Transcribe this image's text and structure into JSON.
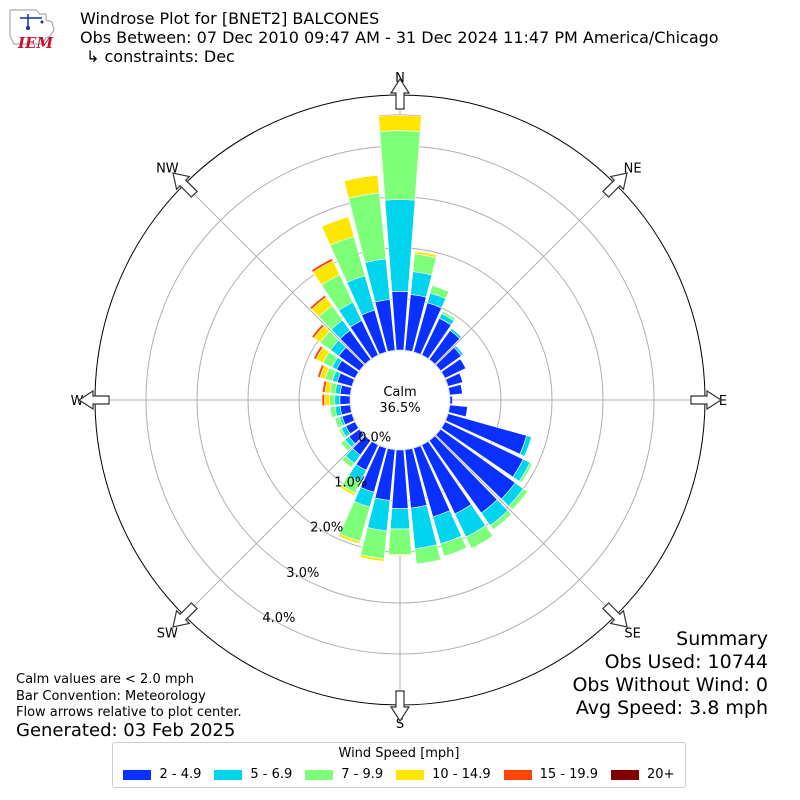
{
  "header": {
    "title": "Windrose Plot for [BNET2] BALCONES",
    "subtitle": "Obs Between: 07 Dec 2010 09:47 AM - 31 Dec 2024 11:47 PM America/Chicago",
    "constraints": "↳ constraints: Dec",
    "logo_text": "IEM"
  },
  "summary": {
    "title": "Summary",
    "obs_used": "Obs Used: 10744",
    "obs_without_wind": "Obs Without Wind: 0",
    "avg_speed": "Avg Speed: 3.8 mph"
  },
  "notes": {
    "calm": "Calm values are < 2.0 mph",
    "bar_convention": "Bar Convention: Meteorology",
    "flow_arrows": "Flow arrows relative to plot center.",
    "generated": "Generated: 03 Feb 2025"
  },
  "legend": {
    "title": "Wind Speed [mph]",
    "items": [
      {
        "label": "2 - 4.9",
        "color": "#0a30ff"
      },
      {
        "label": "5 - 6.9",
        "color": "#00d4ee"
      },
      {
        "label": "7 - 9.9",
        "color": "#7dff7a"
      },
      {
        "label": "10 - 14.9",
        "color": "#ffe600"
      },
      {
        "label": "15 - 19.9",
        "color": "#ff4500"
      },
      {
        "label": "20+",
        "color": "#800000"
      }
    ]
  },
  "chart_data": {
    "type": "windrose",
    "title": "Windrose Plot for [BNET2] BALCONES",
    "calm_label": "Calm",
    "calm_percent": "36.5%",
    "radial_unit": "%",
    "radial_ticks": [
      "0.0%",
      "1.0%",
      "2.0%",
      "3.0%",
      "4.0%"
    ],
    "radial_max": 5.0,
    "compass_labels": [
      "N",
      "NE",
      "E",
      "SE",
      "S",
      "SW",
      "W",
      "NW"
    ],
    "direction_count": 36,
    "speed_bins": [
      "2 - 4.9",
      "5 - 6.9",
      "7 - 9.9",
      "10 - 14.9",
      "15 - 19.9",
      "20+"
    ],
    "directions_deg": [
      0,
      10,
      20,
      30,
      40,
      50,
      60,
      70,
      80,
      90,
      100,
      110,
      120,
      130,
      140,
      150,
      160,
      170,
      180,
      190,
      200,
      210,
      220,
      230,
      240,
      250,
      260,
      270,
      280,
      290,
      300,
      310,
      320,
      330,
      340,
      350
    ],
    "values": [
      [
        1.15,
        1.8,
        1.35,
        0.3,
        0.02,
        0.0
      ],
      [
        1.1,
        0.45,
        0.35,
        0.05,
        0.0,
        0.0
      ],
      [
        1.0,
        0.2,
        0.15,
        0.0,
        0.0,
        0.0
      ],
      [
        0.8,
        0.1,
        0.05,
        0.0,
        0.0,
        0.0
      ],
      [
        0.7,
        0.05,
        0.0,
        0.0,
        0.0,
        0.0
      ],
      [
        0.5,
        0.05,
        0.0,
        0.0,
        0.0,
        0.0
      ],
      [
        0.45,
        0.0,
        0.0,
        0.0,
        0.0,
        0.0
      ],
      [
        0.3,
        0.0,
        0.0,
        0.0,
        0.0,
        0.0
      ],
      [
        0.25,
        0.0,
        0.0,
        0.0,
        0.0,
        0.0
      ],
      [
        0.05,
        0.0,
        0.0,
        0.0,
        0.0,
        0.0
      ],
      [
        0.35,
        0.0,
        0.0,
        0.0,
        0.0,
        0.0
      ],
      [
        1.6,
        0.1,
        0.0,
        0.0,
        0.0,
        0.0
      ],
      [
        1.7,
        0.15,
        0.05,
        0.0,
        0.0,
        0.0
      ],
      [
        1.8,
        0.2,
        0.1,
        0.0,
        0.0,
        0.0
      ],
      [
        1.75,
        0.3,
        0.1,
        0.0,
        0.0,
        0.0
      ],
      [
        1.5,
        0.5,
        0.25,
        0.0,
        0.0,
        0.0
      ],
      [
        1.4,
        0.55,
        0.25,
        0.0,
        0.0,
        0.0
      ],
      [
        1.15,
        0.8,
        0.3,
        0.0,
        0.0,
        0.0
      ],
      [
        1.15,
        0.4,
        0.5,
        0.02,
        0.0,
        0.0
      ],
      [
        1.0,
        0.6,
        0.55,
        0.05,
        0.0,
        0.0
      ],
      [
        0.9,
        0.3,
        0.7,
        0.05,
        0.0,
        0.0
      ],
      [
        0.55,
        0.25,
        0.25,
        0.05,
        0.0,
        0.0
      ],
      [
        0.35,
        0.2,
        0.1,
        0.0,
        0.0,
        0.0
      ],
      [
        0.25,
        0.1,
        0.1,
        0.0,
        0.0,
        0.0
      ],
      [
        0.2,
        0.1,
        0.05,
        0.0,
        0.0,
        0.0
      ],
      [
        0.2,
        0.05,
        0.1,
        0.0,
        0.0,
        0.0
      ],
      [
        0.2,
        0.1,
        0.1,
        0.0,
        0.0,
        0.0
      ],
      [
        0.2,
        0.1,
        0.1,
        0.1,
        0.05,
        0.0
      ],
      [
        0.2,
        0.1,
        0.1,
        0.1,
        0.05,
        0.0
      ],
      [
        0.3,
        0.1,
        0.15,
        0.1,
        0.05,
        0.0
      ],
      [
        0.4,
        0.1,
        0.2,
        0.15,
        0.05,
        0.0
      ],
      [
        0.5,
        0.2,
        0.25,
        0.15,
        0.05,
        0.0
      ],
      [
        0.7,
        0.25,
        0.35,
        0.2,
        0.05,
        0.0
      ],
      [
        0.75,
        0.4,
        0.6,
        0.3,
        0.05,
        0.0
      ],
      [
        0.85,
        0.7,
        0.8,
        0.4,
        0.0,
        0.0
      ],
      [
        1.0,
        0.8,
        1.3,
        0.35,
        0.0,
        0.0
      ]
    ]
  }
}
